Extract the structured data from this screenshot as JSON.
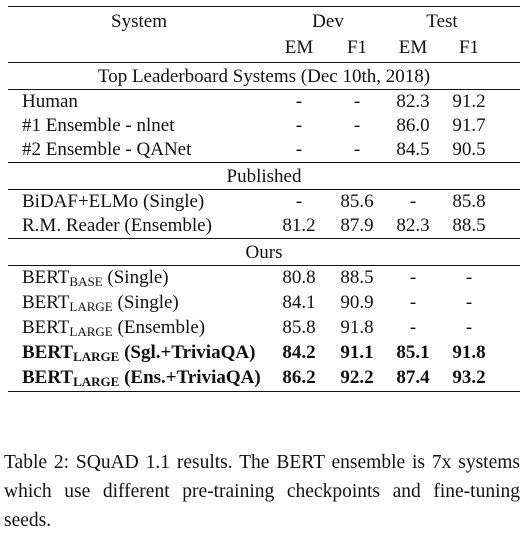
{
  "table": {
    "header": {
      "system": "System",
      "dev": "Dev",
      "test": "Test",
      "em": "EM",
      "f1": "F1"
    },
    "sections": [
      {
        "title": "Top Leaderboard Systems (Dec 10th, 2018)",
        "rows": [
          {
            "name": "Human",
            "sub": "",
            "suffix": "",
            "dev_em": "-",
            "dev_f1": "-",
            "test_em": "82.3",
            "test_f1": "91.2",
            "bold": false
          },
          {
            "name": "#1 Ensemble - nlnet",
            "sub": "",
            "suffix": "",
            "dev_em": "-",
            "dev_f1": "-",
            "test_em": "86.0",
            "test_f1": "91.7",
            "bold": false
          },
          {
            "name": "#2 Ensemble - QANet",
            "sub": "",
            "suffix": "",
            "dev_em": "-",
            "dev_f1": "-",
            "test_em": "84.5",
            "test_f1": "90.5",
            "bold": false
          }
        ]
      },
      {
        "title": "Published",
        "rows": [
          {
            "name": "BiDAF+ELMo (Single)",
            "sub": "",
            "suffix": "",
            "dev_em": "-",
            "dev_f1": "85.6",
            "test_em": "-",
            "test_f1": "85.8",
            "bold": false
          },
          {
            "name": "R.M. Reader (Ensemble)",
            "sub": "",
            "suffix": "",
            "dev_em": "81.2",
            "dev_f1": "87.9",
            "test_em": "82.3",
            "test_f1": "88.5",
            "bold": false
          }
        ]
      },
      {
        "title": "Ours",
        "rows": [
          {
            "name": "BERT",
            "sub": "BASE",
            "suffix": " (Single)",
            "dev_em": "80.8",
            "dev_f1": "88.5",
            "test_em": "-",
            "test_f1": "-",
            "bold": false
          },
          {
            "name": "BERT",
            "sub": "LARGE",
            "suffix": " (Single)",
            "dev_em": "84.1",
            "dev_f1": "90.9",
            "test_em": "-",
            "test_f1": "-",
            "bold": false
          },
          {
            "name": "BERT",
            "sub": "LARGE",
            "suffix": " (Ensemble)",
            "dev_em": "85.8",
            "dev_f1": "91.8",
            "test_em": "-",
            "test_f1": "-",
            "bold": false
          },
          {
            "name": "BERT",
            "sub": "LARGE",
            "suffix": " (Sgl.+TriviaQA)",
            "dev_em": "84.2",
            "dev_f1": "91.1",
            "test_em": "85.1",
            "test_f1": "91.8",
            "bold": true
          },
          {
            "name": "BERT",
            "sub": "LARGE",
            "suffix": " (Ens.+TriviaQA)",
            "dev_em": "86.2",
            "dev_f1": "92.2",
            "test_em": "87.4",
            "test_f1": "93.2",
            "bold": true
          }
        ]
      }
    ]
  },
  "caption": "Table 2:   SQuAD 1.1 results.  The BERT ensemble is 7x systems which use different pre-training checkpoints and fine-tuning seeds."
}
